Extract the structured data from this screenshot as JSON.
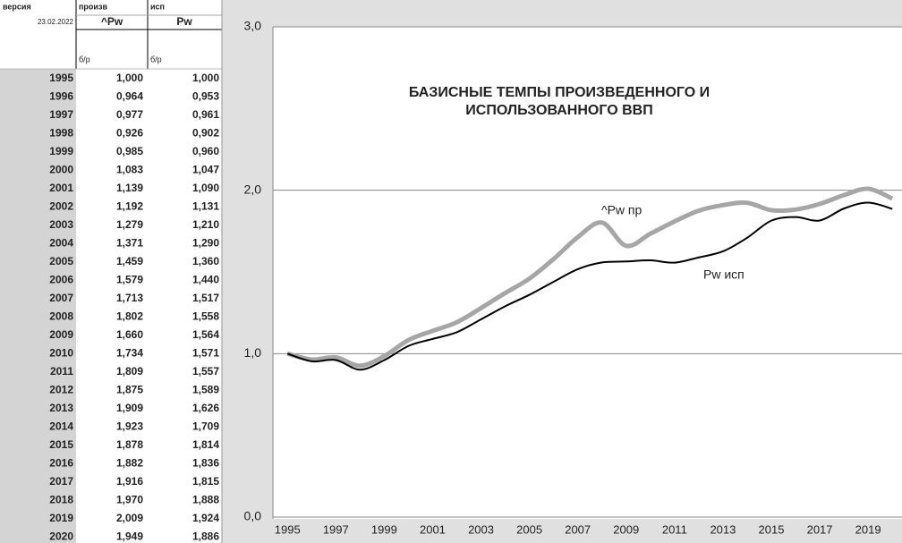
{
  "table": {
    "header": [
      [
        "версия",
        "произв",
        "исп"
      ],
      [
        "23.02.2022",
        "^Pw",
        "Pw"
      ],
      [
        "б/р",
        "б/р"
      ]
    ],
    "rows": [
      [
        "1995",
        "1,000",
        "1,000"
      ],
      [
        "1996",
        "0,964",
        "0,953"
      ],
      [
        "1997",
        "0,977",
        "0,961"
      ],
      [
        "1998",
        "0,926",
        "0,902"
      ],
      [
        "1999",
        "0,985",
        "0,960"
      ],
      [
        "2000",
        "1,083",
        "1,047"
      ],
      [
        "2001",
        "1,139",
        "1,090"
      ],
      [
        "2002",
        "1,192",
        "1,131"
      ],
      [
        "2003",
        "1,279",
        "1,210"
      ],
      [
        "2004",
        "1,371",
        "1,290"
      ],
      [
        "2005",
        "1,459",
        "1,360"
      ],
      [
        "2006",
        "1,579",
        "1,440"
      ],
      [
        "2007",
        "1,713",
        "1,517"
      ],
      [
        "2008",
        "1,802",
        "1,558"
      ],
      [
        "2009",
        "1,660",
        "1,564"
      ],
      [
        "2010",
        "1,734",
        "1,571"
      ],
      [
        "2011",
        "1,809",
        "1,557"
      ],
      [
        "2012",
        "1,875",
        "1,589"
      ],
      [
        "2013",
        "1,909",
        "1,626"
      ],
      [
        "2014",
        "1,923",
        "1,709"
      ],
      [
        "2015",
        "1,878",
        "1,814"
      ],
      [
        "2016",
        "1,882",
        "1,836"
      ],
      [
        "2017",
        "1,916",
        "1,815"
      ],
      [
        "2018",
        "1,970",
        "1,888"
      ],
      [
        "2019",
        "2,009",
        "1,924"
      ],
      [
        "2020",
        "1,949",
        "1,886"
      ]
    ]
  },
  "chart_data": {
    "type": "line",
    "title": [
      "БАЗИСНЫЕ ТЕМПЫ   ПРОИЗВЕДЕННОГО И",
      "ИСПОЛЬЗОВАННОГО ВВП"
    ],
    "x": [
      1995,
      1996,
      1997,
      1998,
      1999,
      2000,
      2001,
      2002,
      2003,
      2004,
      2005,
      2006,
      2007,
      2008,
      2009,
      2010,
      2011,
      2012,
      2013,
      2014,
      2015,
      2016,
      2017,
      2018,
      2019,
      2020
    ],
    "series": [
      {
        "name": "^Pw пр",
        "color": "#a6a6a6",
        "values": [
          1.0,
          0.964,
          0.977,
          0.926,
          0.985,
          1.083,
          1.139,
          1.192,
          1.279,
          1.371,
          1.459,
          1.579,
          1.713,
          1.802,
          1.66,
          1.734,
          1.809,
          1.875,
          1.909,
          1.923,
          1.878,
          1.882,
          1.916,
          1.97,
          2.009,
          1.949
        ]
      },
      {
        "name": "Pw исп",
        "color": "#000000",
        "values": [
          1.0,
          0.953,
          0.961,
          0.902,
          0.96,
          1.047,
          1.09,
          1.131,
          1.21,
          1.29,
          1.36,
          1.44,
          1.517,
          1.558,
          1.564,
          1.571,
          1.557,
          1.589,
          1.626,
          1.709,
          1.814,
          1.836,
          1.815,
          1.888,
          1.924,
          1.886
        ]
      }
    ],
    "xlim": [
      1994.4,
      2020.4
    ],
    "xticks": [
      1995,
      1997,
      1999,
      2001,
      2003,
      2005,
      2007,
      2009,
      2011,
      2013,
      2015,
      2017,
      2019
    ],
    "ylim": [
      0,
      3
    ],
    "yticks": [
      {
        "value": 0,
        "label": "0,0"
      },
      {
        "value": 1,
        "label": "1,0"
      },
      {
        "value": 2,
        "label": "2,0"
      },
      {
        "value": 3,
        "label": "3,0"
      }
    ],
    "grid": true
  }
}
